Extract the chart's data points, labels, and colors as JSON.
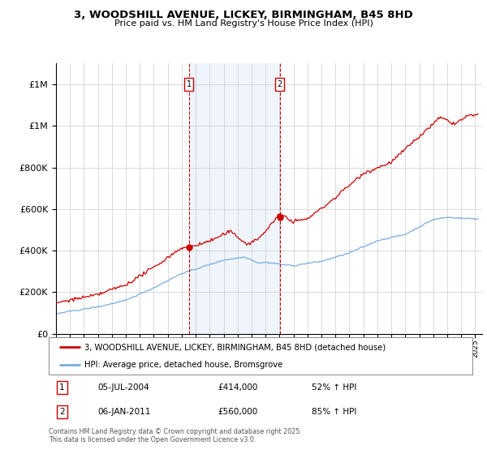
{
  "title": "3, WOODSHILL AVENUE, LICKEY, BIRMINGHAM, B45 8HD",
  "subtitle": "Price paid vs. HM Land Registry's House Price Index (HPI)",
  "legend_line1": "3, WOODSHILL AVENUE, LICKEY, BIRMINGHAM, B45 8HD (detached house)",
  "legend_line2": "HPI: Average price, detached house, Bromsgrove",
  "annotation1_label": "1",
  "annotation1_date": "05-JUL-2004",
  "annotation1_price": "£414,000",
  "annotation1_hpi": "52% ↑ HPI",
  "annotation2_label": "2",
  "annotation2_date": "06-JAN-2011",
  "annotation2_price": "£560,000",
  "annotation2_hpi": "85% ↑ HPI",
  "footer": "Contains HM Land Registry data © Crown copyright and database right 2025.\nThis data is licensed under the Open Government Licence v3.0.",
  "line_color_red": "#cc0000",
  "line_color_blue": "#7aade0",
  "shaded_color": "#ddeeff",
  "vline_color": "#cc0000",
  "marker_box_color": "#cc0000",
  "ylim": [
    0,
    1300000
  ],
  "xlim_start": 1995.0,
  "xlim_end": 2025.5,
  "sale1_year": 2004.507,
  "sale1_value": 414000,
  "sale2_year": 2011.014,
  "sale2_value": 560000,
  "background_color": "#ffffff",
  "grid_color": "#cccccc"
}
